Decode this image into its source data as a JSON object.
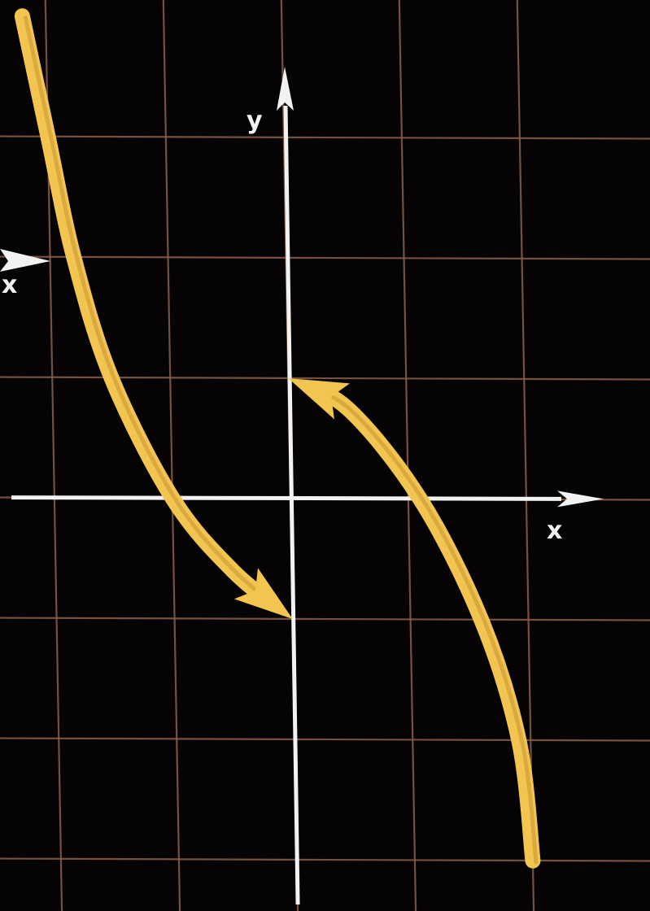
{
  "chart_data": {
    "type": "line",
    "title": "",
    "x_axis_label": "x",
    "y_axis_label": "y",
    "stray_label": "x",
    "grid": true,
    "xlim": [
      -2.5,
      2.5
    ],
    "ylim": [
      -3,
      4
    ],
    "grid_x": [
      -2,
      -1,
      0,
      1,
      2
    ],
    "grid_y": [
      -3,
      -2,
      -1,
      0,
      1,
      2,
      3
    ],
    "colors": {
      "background": "#050303",
      "grid": "#8a5f4a",
      "axes": "#f2f2f2",
      "curve": "#f2c550"
    },
    "series": [
      {
        "arrow_end": true,
        "points": [
          [
            -2.2,
            4.0
          ],
          [
            -2.0,
            3.0
          ],
          [
            -1.8,
            2.0
          ],
          [
            -1.5,
            1.0
          ],
          [
            -1.0,
            0.0
          ],
          [
            -0.5,
            -0.6
          ],
          [
            0.0,
            -1.0
          ]
        ]
      },
      {
        "arrow_end": true,
        "points": [
          [
            2.0,
            -3.0
          ],
          [
            1.9,
            -2.0
          ],
          [
            1.6,
            -1.0
          ],
          [
            1.1,
            0.0
          ],
          [
            0.5,
            0.75
          ],
          [
            0.0,
            1.0
          ]
        ]
      }
    ]
  }
}
